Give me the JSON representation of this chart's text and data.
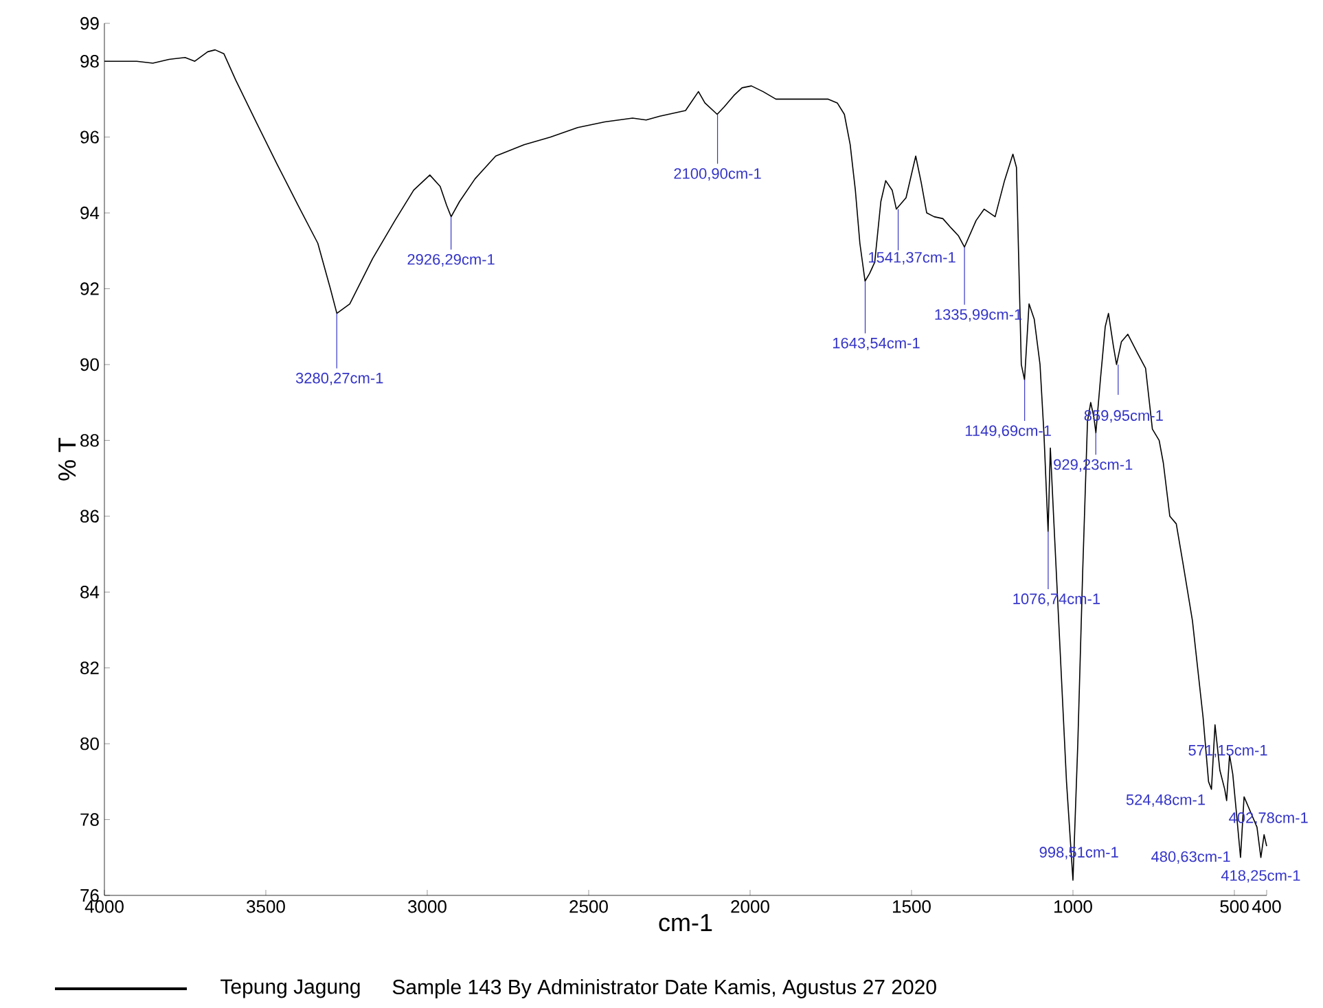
{
  "chart_data": {
    "type": "line",
    "xlabel": "cm-1",
    "ylabel": "% T",
    "xlim": [
      4000,
      400
    ],
    "ylim": [
      76,
      99
    ],
    "xticks": [
      4000,
      3500,
      3000,
      2500,
      2000,
      1500,
      1000,
      500,
      400
    ],
    "yticks": [
      76,
      78,
      80,
      82,
      84,
      86,
      88,
      90,
      92,
      94,
      96,
      98,
      99
    ],
    "legend": "bottom",
    "marker": "none",
    "line_style": "solid",
    "series": [
      {
        "name": "Tepung Jagung",
        "color": "#000000",
        "x": [
          4000,
          3900,
          3850,
          3800,
          3750,
          3720,
          3680,
          3657,
          3630,
          3593,
          3530,
          3466,
          3400,
          3339,
          3300,
          3280,
          3240,
          3169,
          3100,
          3042,
          2992,
          2960,
          2940,
          2926,
          2900,
          2852,
          2788,
          2700,
          2619,
          2534,
          2450,
          2364,
          2322,
          2280,
          2200,
          2160,
          2140,
          2102,
          2080,
          2050,
          2025,
          1996,
          1960,
          1920,
          1850,
          1758,
          1730,
          1708,
          1690,
          1674,
          1660,
          1644,
          1630,
          1614,
          1595,
          1580,
          1560,
          1547,
          1517,
          1487,
          1470,
          1453,
          1430,
          1403,
          1377,
          1355,
          1336,
          1300,
          1275,
          1241,
          1212,
          1186,
          1175,
          1160,
          1150,
          1136,
          1120,
          1102,
          1090,
          1077,
          1070,
          1060,
          1040,
          1020,
          1000,
          985,
          970,
          955,
          945,
          935,
          929,
          915,
          900,
          890,
          875,
          865,
          850,
          830,
          800,
          775,
          754,
          740,
          733,
          720,
          700,
          680,
          660,
          630,
          597,
          580,
          571,
          560,
          545,
          530,
          524,
          515,
          505,
          495,
          481,
          470,
          450,
          430,
          418,
          408,
          400
        ],
        "values": [
          98.0,
          98.0,
          97.95,
          98.05,
          98.1,
          98.0,
          98.25,
          98.3,
          98.2,
          97.5,
          96.4,
          95.3,
          94.2,
          93.2,
          92.0,
          91.35,
          91.6,
          92.8,
          93.8,
          94.6,
          95.0,
          94.7,
          94.2,
          93.9,
          94.3,
          94.9,
          95.5,
          95.8,
          96.0,
          96.25,
          96.4,
          96.5,
          96.45,
          96.55,
          96.7,
          97.2,
          96.9,
          96.6,
          96.8,
          97.1,
          97.3,
          97.35,
          97.2,
          97.0,
          97.0,
          97.0,
          96.9,
          96.6,
          95.8,
          94.6,
          93.2,
          92.2,
          92.4,
          92.7,
          94.3,
          94.85,
          94.6,
          94.1,
          94.4,
          95.5,
          94.8,
          94.0,
          93.9,
          93.85,
          93.6,
          93.4,
          93.1,
          93.8,
          94.1,
          93.9,
          94.85,
          95.55,
          95.2,
          90.0,
          89.6,
          91.6,
          91.2,
          90.0,
          88.2,
          85.6,
          87.8,
          86.0,
          82.5,
          79.0,
          76.4,
          80.0,
          84.5,
          88.5,
          89.0,
          88.6,
          88.2,
          89.6,
          91.0,
          91.35,
          90.5,
          90.0,
          90.6,
          90.8,
          90.3,
          89.9,
          88.3,
          88.1,
          88.0,
          87.4,
          86.0,
          85.8,
          84.8,
          83.25,
          80.7,
          79.0,
          78.8,
          80.5,
          79.3,
          78.8,
          78.5,
          79.7,
          79.2,
          78.3,
          77.0,
          78.6,
          78.2,
          77.8,
          77.0,
          77.6,
          77.3
        ]
      }
    ],
    "annotations": [
      {
        "text": "3280,27cm-1",
        "x": 3280.27,
        "y": 91.35
      },
      {
        "text": "2926,29cm-1",
        "x": 2926.29,
        "y": 93.9
      },
      {
        "text": "2100,90cm-1",
        "x": 2100.9,
        "y": 96.6
      },
      {
        "text": "1643,54cm-1",
        "x": 1643.54,
        "y": 92.2
      },
      {
        "text": "1541,37cm-1",
        "x": 1541.37,
        "y": 94.1
      },
      {
        "text": "1335,99cm-1",
        "x": 1335.99,
        "y": 93.1
      },
      {
        "text": "1149,69cm-1",
        "x": 1149.69,
        "y": 89.6
      },
      {
        "text": "859,95cm-1",
        "x": 859.95,
        "y": 90.0
      },
      {
        "text": "929,23cm-1",
        "x": 929.23,
        "y": 88.2
      },
      {
        "text": "1076,74cm-1",
        "x": 1076.74,
        "y": 85.6
      },
      {
        "text": "998,51cm-1",
        "x": 998.51,
        "y": 76.4
      },
      {
        "text": "571,15cm-1",
        "x": 571.15,
        "y": 78.8
      },
      {
        "text": "524,48cm-1",
        "x": 524.48,
        "y": 78.5
      },
      {
        "text": "402,78cm-1",
        "x": 402.78,
        "y": 77.6
      },
      {
        "text": "480,63cm-1",
        "x": 480.63,
        "y": 77.0
      },
      {
        "text": "418,25cm-1",
        "x": 418.25,
        "y": 77.0
      },
      "Sample 143 By Administrator Date Kamis, Agustus 27 2020"
    ]
  }
}
